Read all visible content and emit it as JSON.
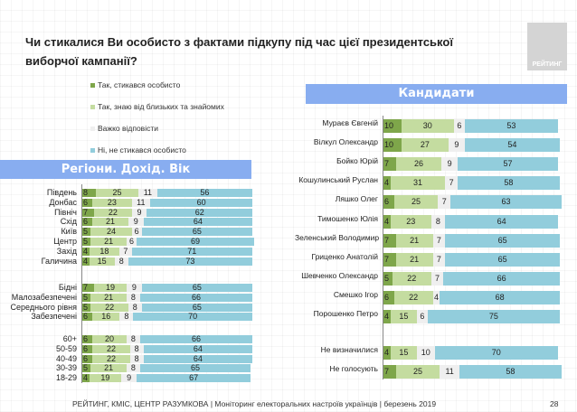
{
  "title": "Чи стикалися Ви особисто з фактами підкупу під час цієї президентської виборчої кампанії?",
  "logo_text": "РЕЙТИНГ",
  "footer": "РЕЙТИНГ, КМІС, ЦЕНТР РАЗУМКОВА  | Моніторинг електоральних настроїв українців | березень 2019",
  "page_number": "28",
  "colors": {
    "personal": "#7ea64a",
    "heard": "#c4dca0",
    "hard": "#efefef",
    "no": "#92cddc",
    "header": "#88adf0"
  },
  "chart_data": [
    {
      "type": "bar",
      "orientation": "horizontal",
      "stacked": true,
      "title": "Регіони. Дохід. Вік",
      "xlim": [
        0,
        100
      ],
      "legend": [
        "Так, стикався особисто",
        "Так, знаю від близьких та знайомих",
        "Важко відповісти",
        "Ні, не стикався особисто"
      ],
      "groups": [
        {
          "categories": [
            "Південь",
            "Донбас",
            "Північ",
            "Схід",
            "Київ",
            "Центр",
            "Захід",
            "Галичина"
          ],
          "series": [
            [
              8,
              6,
              7,
              6,
              5,
              5,
              4,
              4
            ],
            [
              25,
              23,
              22,
              21,
              24,
              21,
              18,
              15
            ],
            [
              11,
              11,
              9,
              9,
              6,
              6,
              7,
              8
            ],
            [
              56,
              60,
              62,
              64,
              65,
              69,
              71,
              73
            ]
          ]
        },
        {
          "categories": [
            "Бідні",
            "Малозабезпечені",
            "Середнього рівня",
            "Забезпечені"
          ],
          "series": [
            [
              7,
              5,
              5,
              6
            ],
            [
              19,
              21,
              22,
              16
            ],
            [
              9,
              8,
              8,
              8
            ],
            [
              65,
              66,
              65,
              70
            ]
          ]
        },
        {
          "categories": [
            "60+",
            "50-59",
            "40-49",
            "30-39",
            "18-29"
          ],
          "series": [
            [
              6,
              6,
              6,
              5,
              4
            ],
            [
              20,
              22,
              22,
              21,
              19
            ],
            [
              8,
              8,
              8,
              8,
              9
            ],
            [
              66,
              64,
              64,
              65,
              67
            ]
          ]
        }
      ]
    },
    {
      "type": "bar",
      "orientation": "horizontal",
      "stacked": true,
      "title": "Кандидати",
      "xlim": [
        0,
        100
      ],
      "groups": [
        {
          "categories": [
            "Мураєв Євгеній",
            "Вілкул Олександр",
            "Бойко Юрій",
            "Кошулинський Руслан",
            "Ляшко Олег",
            "Тимошенко Юлія",
            "Зеленський Володимир",
            "Гриценко Анатолій",
            "Шевченко Олександр",
            "Смешко Ігор",
            "Порошенко Петро"
          ],
          "series": [
            [
              10,
              10,
              7,
              4,
              6,
              4,
              7,
              7,
              5,
              6,
              4
            ],
            [
              30,
              27,
              26,
              31,
              25,
              23,
              21,
              21,
              22,
              22,
              15
            ],
            [
              6,
              9,
              9,
              7,
              7,
              8,
              7,
              7,
              7,
              4,
              6
            ],
            [
              53,
              54,
              57,
              58,
              63,
              64,
              65,
              65,
              66,
              68,
              75
            ]
          ]
        },
        {
          "categories": [
            "Не визначилися",
            "Не голосують"
          ],
          "series": [
            [
              4,
              7
            ],
            [
              15,
              25
            ],
            [
              10,
              11
            ],
            [
              70,
              58
            ]
          ]
        }
      ]
    }
  ]
}
